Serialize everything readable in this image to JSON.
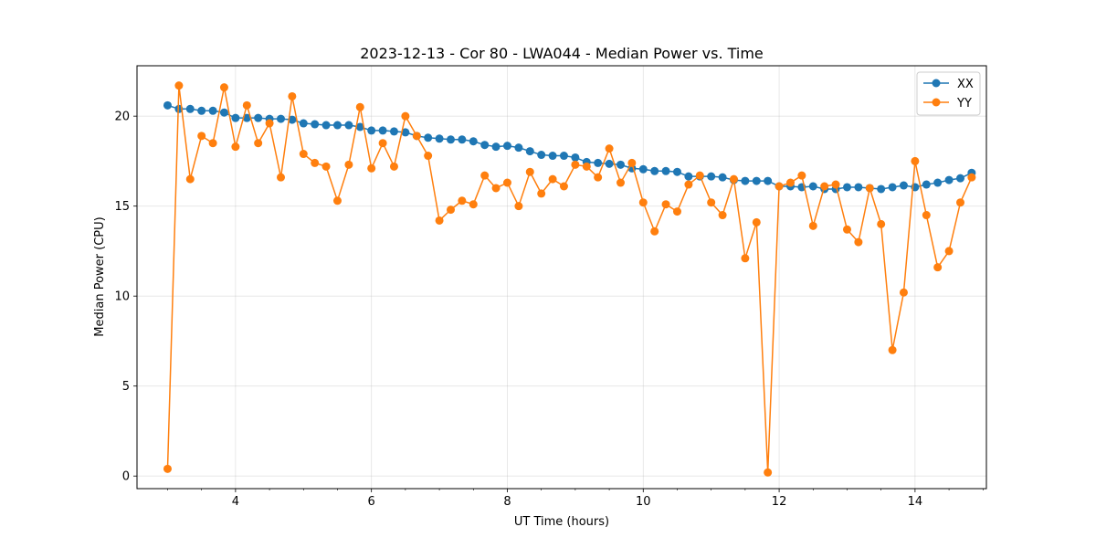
{
  "chart_data": {
    "type": "line",
    "title": "2023-12-13 - Cor 80 - LWA044 - Median Power vs. Time",
    "xlabel": "UT Time (hours)",
    "ylabel": "Median Power (CPU)",
    "xlim": [
      2.55,
      15.05
    ],
    "ylim": [
      -0.7,
      22.8
    ],
    "xticks": [
      4,
      6,
      8,
      10,
      12,
      14
    ],
    "xtick_labels": [
      "4",
      "6",
      "8",
      "10",
      "12",
      "14"
    ],
    "yticks": [
      0,
      5,
      10,
      15,
      20
    ],
    "ytick_labels": [
      "0",
      "5",
      "10",
      "15",
      "20"
    ],
    "minor_x_step": 0.5,
    "grid": true,
    "legend_position": "top-right",
    "colors": {
      "XX": "#1f77b4",
      "YY": "#ff7f0e"
    },
    "x": [
      3.0,
      3.167,
      3.333,
      3.5,
      3.667,
      3.833,
      4.0,
      4.167,
      4.333,
      4.5,
      4.667,
      4.833,
      5.0,
      5.167,
      5.333,
      5.5,
      5.667,
      5.833,
      6.0,
      6.167,
      6.333,
      6.5,
      6.667,
      6.833,
      7.0,
      7.167,
      7.333,
      7.5,
      7.667,
      7.833,
      8.0,
      8.167,
      8.333,
      8.5,
      8.667,
      8.833,
      9.0,
      9.167,
      9.333,
      9.5,
      9.667,
      9.833,
      10.0,
      10.167,
      10.333,
      10.5,
      10.667,
      10.833,
      11.0,
      11.167,
      11.333,
      11.5,
      11.667,
      11.833,
      12.0,
      12.167,
      12.333,
      12.5,
      12.667,
      12.833,
      13.0,
      13.167,
      13.333,
      13.5,
      13.667,
      13.833,
      14.0,
      14.167,
      14.333,
      14.5,
      14.667,
      14.833
    ],
    "series": [
      {
        "name": "XX",
        "values": [
          20.6,
          20.4,
          20.4,
          20.3,
          20.3,
          20.2,
          19.9,
          19.9,
          19.9,
          19.85,
          19.85,
          19.8,
          19.6,
          19.55,
          19.5,
          19.5,
          19.5,
          19.4,
          19.2,
          19.2,
          19.15,
          19.1,
          18.9,
          18.8,
          18.75,
          18.7,
          18.7,
          18.6,
          18.4,
          18.3,
          18.35,
          18.25,
          18.05,
          17.85,
          17.8,
          17.8,
          17.7,
          17.45,
          17.4,
          17.35,
          17.3,
          17.1,
          17.05,
          16.95,
          16.95,
          16.9,
          16.65,
          16.65,
          16.65,
          16.6,
          16.45,
          16.4,
          16.4,
          16.4,
          16.1,
          16.1,
          16.05,
          16.1,
          15.95,
          15.95,
          16.05,
          16.05,
          16.0,
          15.95,
          16.05,
          16.15,
          16.05,
          16.2,
          16.3,
          16.45,
          16.55,
          16.85
        ]
      },
      {
        "name": "YY",
        "values": [
          0.4,
          21.7,
          16.5,
          18.9,
          18.5,
          21.6,
          18.3,
          20.6,
          18.5,
          19.6,
          16.6,
          21.1,
          17.9,
          17.4,
          17.2,
          15.3,
          17.3,
          20.5,
          17.1,
          18.5,
          17.2,
          20.0,
          18.9,
          17.8,
          14.2,
          14.8,
          15.3,
          15.1,
          16.7,
          16.0,
          16.3,
          15.0,
          16.9,
          15.7,
          16.5,
          16.1,
          17.3,
          17.2,
          16.6,
          18.2,
          16.3,
          17.4,
          15.2,
          13.6,
          15.1,
          14.7,
          16.2,
          16.7,
          15.2,
          14.5,
          16.5,
          12.1,
          14.1,
          0.2,
          16.1,
          16.3,
          16.7,
          13.9,
          16.1,
          16.2,
          13.7,
          13.0,
          16.0,
          14.0,
          7.0,
          10.2,
          17.5,
          14.5,
          11.6,
          12.5,
          15.2,
          16.6
        ]
      }
    ]
  }
}
